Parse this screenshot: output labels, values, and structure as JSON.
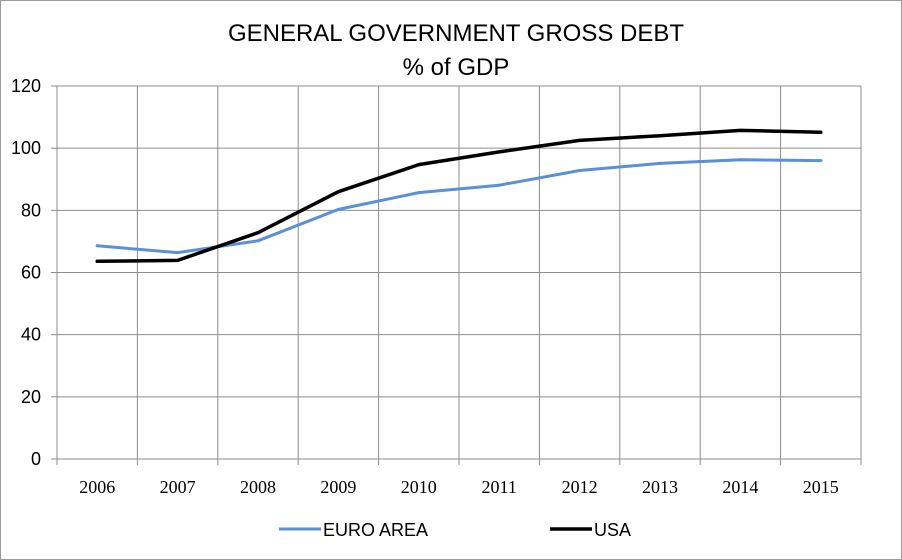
{
  "chart_data": {
    "type": "line",
    "title": "GENERAL GOVERNMENT GROSS DEBT",
    "subtitle": "% of GDP",
    "categories": [
      "2006",
      "2007",
      "2008",
      "2009",
      "2010",
      "2011",
      "2012",
      "2013",
      "2014",
      "2015"
    ],
    "series": [
      {
        "name": "EURO AREA",
        "color": "#5B8FD6",
        "values": [
          68.6,
          66.4,
          70.2,
          80.3,
          85.7,
          88.1,
          92.8,
          95.1,
          96.3,
          96.0
        ]
      },
      {
        "name": "USA",
        "color": "#000000",
        "values": [
          63.6,
          63.9,
          72.8,
          86.0,
          94.7,
          98.8,
          102.5,
          104.0,
          105.7,
          105.1
        ]
      }
    ],
    "ylim": [
      0,
      120
    ],
    "yticks": [
      "0",
      "20",
      "40",
      "60",
      "80",
      "100",
      "120"
    ],
    "grid": true,
    "legend": "bottom-center"
  }
}
